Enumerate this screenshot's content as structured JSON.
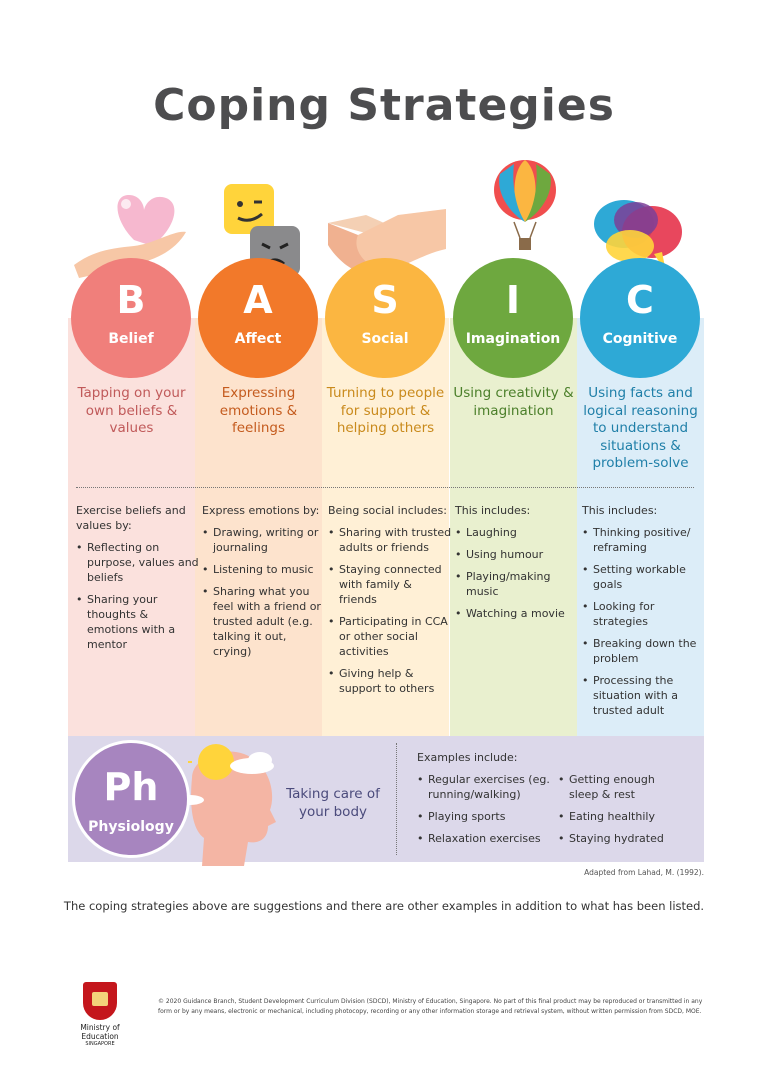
{
  "title": "Coping Strategies",
  "columns": [
    {
      "letter": "B",
      "word": "Belief",
      "color": "#f07f7b",
      "desc": "Tapping on your own beliefs & values",
      "desc_color": "#c05a5a",
      "intro": "Exercise beliefs and values by:",
      "items": [
        "Reflecting on purpose, values and beliefs",
        "Sharing your thoughts & emotions with a mentor"
      ]
    },
    {
      "letter": "A",
      "word": "Affect",
      "color": "#f2792a",
      "desc": "Expressing emotions & feelings",
      "desc_color": "#c45b1e",
      "intro": "Express emotions by:",
      "items": [
        "Drawing, writing or journaling",
        "Listening to music",
        "Sharing what you feel with a friend or trusted adult (e.g. talking it out, crying)"
      ]
    },
    {
      "letter": "S",
      "word": "Social",
      "color": "#fbb641",
      "desc": "Turning to people for support & helping others",
      "desc_color": "#c98a1c",
      "intro": "Being social includes:",
      "items": [
        "Sharing with trusted adults or friends",
        "Staying connected with family & friends",
        "Participating in CCA or other social activities",
        "Giving help & support to others"
      ]
    },
    {
      "letter": "I",
      "word": "Imagination",
      "color": "#6ea83f",
      "desc": "Using creativity & imagination",
      "desc_color": "#4b7f2a",
      "intro": "This includes:",
      "items": [
        "Laughing",
        "Using humour",
        "Playing/making music",
        "Watching a movie"
      ]
    },
    {
      "letter": "C",
      "word": "Cognitive",
      "color": "#2ea9d6",
      "desc": "Using facts and logical reasoning to understand situations & problem-solve",
      "desc_color": "#1f7fa8",
      "intro": "This includes:",
      "items": [
        "Thinking positive/ reframing",
        "Setting workable goals",
        "Looking for strategies",
        "Breaking down the problem",
        "Processing the situation with a trusted adult"
      ]
    }
  ],
  "physiology": {
    "letter": "Ph",
    "word": "Physiology",
    "desc": "Taking care of your body",
    "intro": "Examples include:",
    "left_items": [
      "Regular exercises (eg. running/walking)",
      "Playing sports",
      "Relaxation exercises"
    ],
    "right_items": [
      "Getting enough sleep & rest",
      "Eating healthily",
      "Staying hydrated"
    ]
  },
  "credit": "Adapted from Lahad, M. (1992).",
  "note": "The coping strategies above are suggestions and there are other examples in addition to what has been listed.",
  "logo": {
    "line1": "Ministry of Education",
    "line2": "SINGAPORE"
  },
  "copyright": "© 2020 Guidance Branch, Student Development Curriculum Division (SDCD), Ministry of Education, Singapore. No part of this final product may be reproduced or transmitted in any form or by any means, electronic or mechanical, including photocopy, recording or any other information storage and retrieval system, without written permission from SDCD, MOE."
}
